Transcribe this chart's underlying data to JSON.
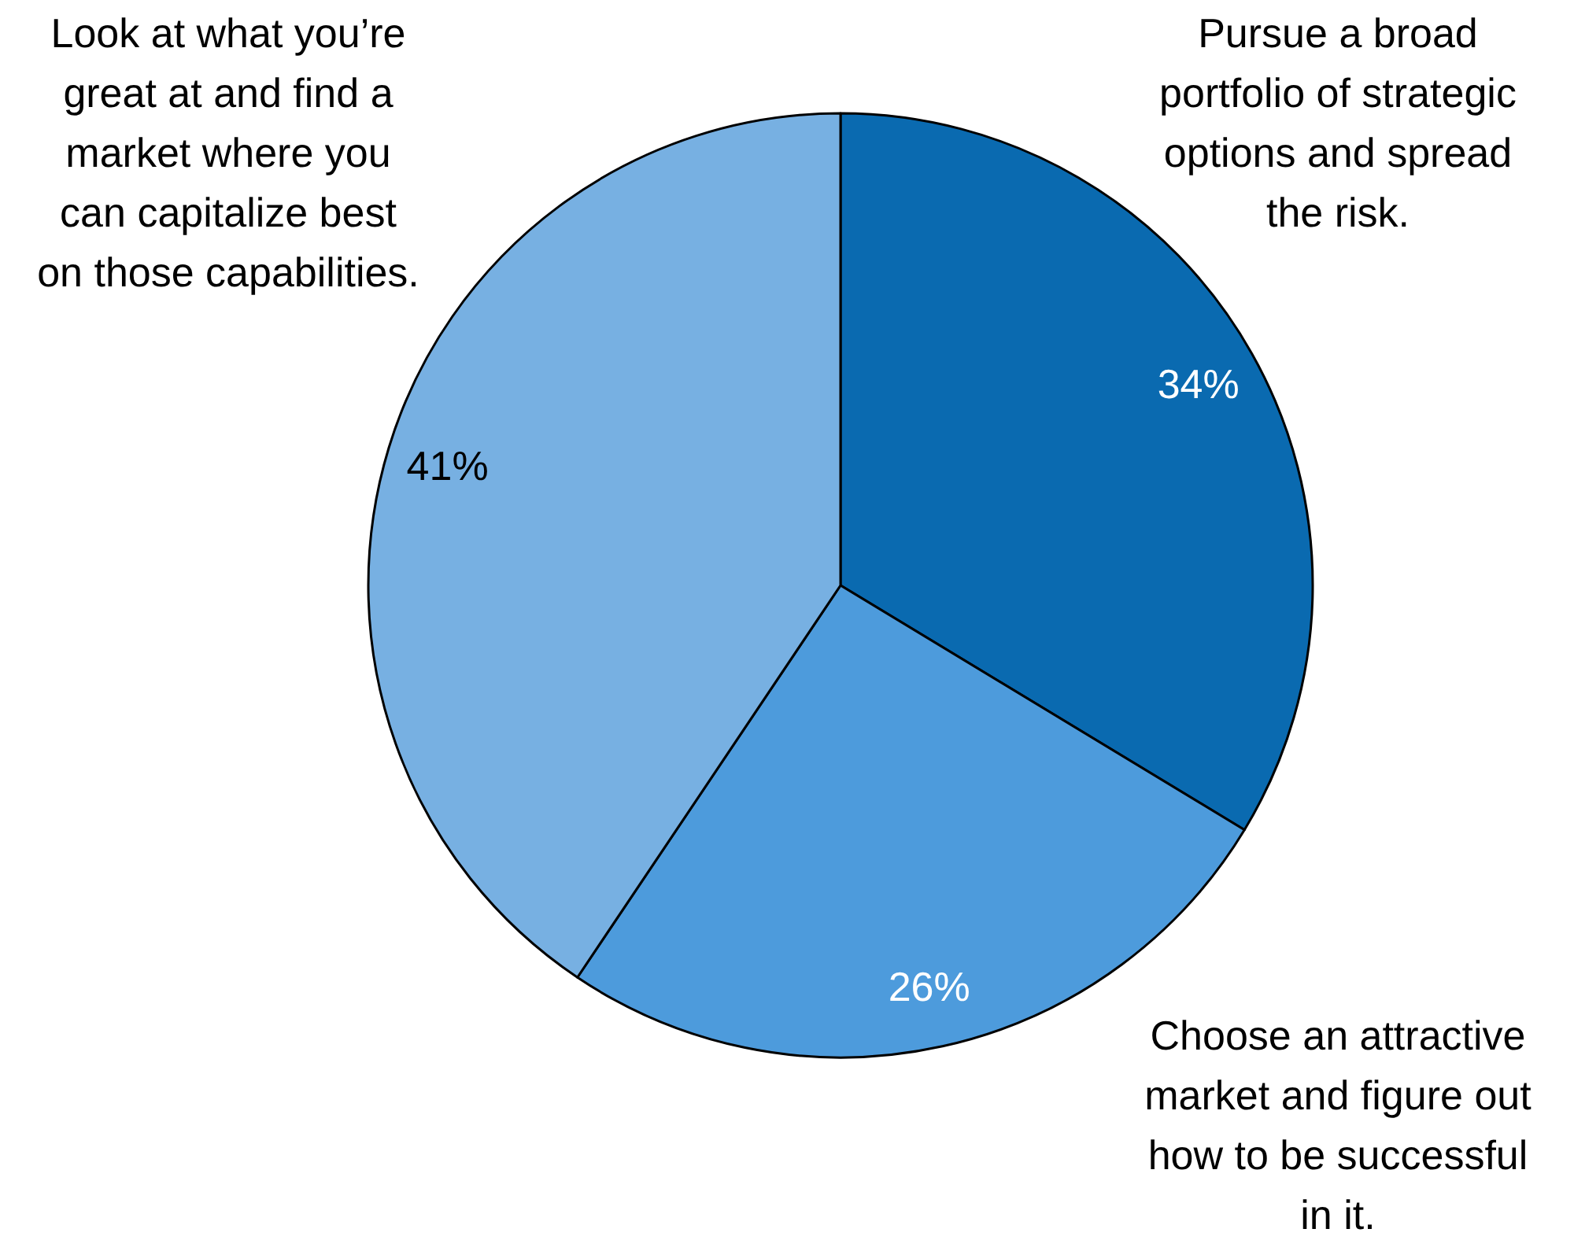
{
  "chart_data": {
    "type": "pie",
    "categories": [
      "Pursue a broad portfolio of strategic options and spread the risk.",
      "Choose an attractive market and figure out how to be successful in it.",
      "Look at what you’re great at and find a market where you can capitalize best on those capabilities."
    ],
    "values": [
      34,
      26,
      41
    ],
    "colors": [
      "#0a6ab0",
      "#4d9bdc",
      "#77b0e2"
    ],
    "value_labels": [
      "34%",
      "26%",
      "41%"
    ]
  }
}
